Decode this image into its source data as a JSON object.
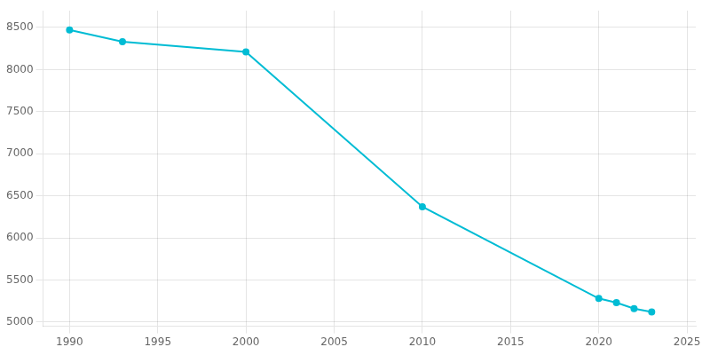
{
  "chart_data": {
    "type": "line",
    "x": [
      1990,
      1993,
      2000,
      2010,
      2020,
      2021,
      2022,
      2023
    ],
    "values": [
      8470,
      8330,
      8210,
      6370,
      5280,
      5230,
      5160,
      5120
    ],
    "color": "#00BCD4",
    "marker": "circle",
    "xlim": [
      1988.5,
      2025.5
    ],
    "ylim": [
      4950,
      8700
    ],
    "xticks": [
      1990,
      1995,
      2000,
      2005,
      2010,
      2015,
      2020,
      2025
    ],
    "yticks": [
      5000,
      5500,
      6000,
      6500,
      7000,
      7500,
      8000,
      8500
    ],
    "grid": true
  }
}
